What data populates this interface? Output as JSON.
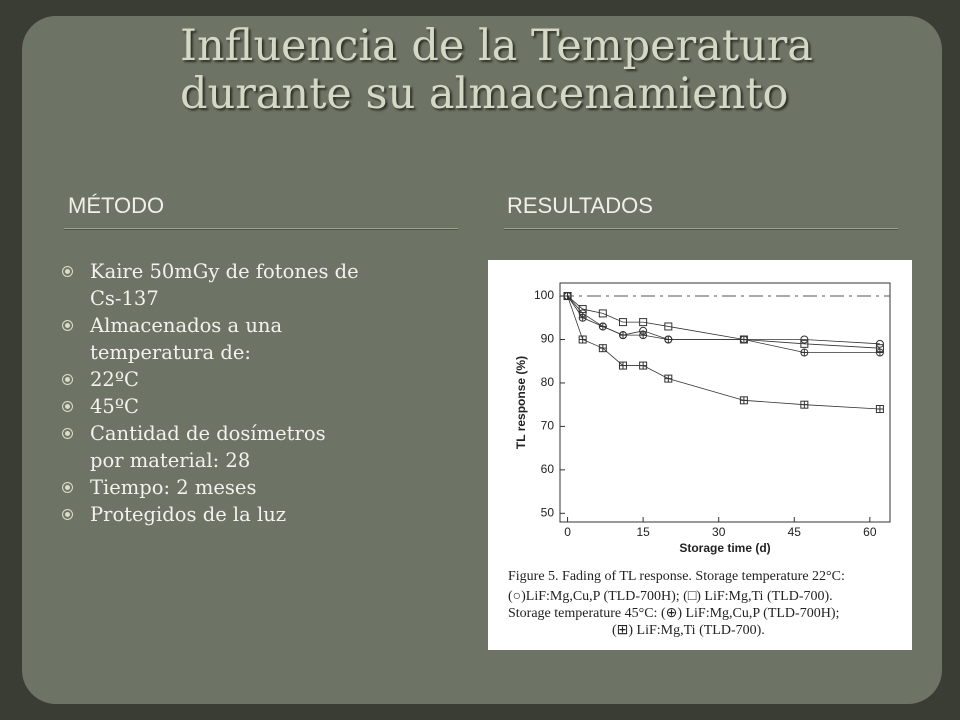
{
  "header": {
    "title": [
      "Influencia de la Temperatura",
      "durante su almacenamiento"
    ]
  },
  "columns": {
    "left": "MÉTODO",
    "right": "RESULTADOS"
  },
  "bullets": [
    [
      "Kaire 50mGy de fotones de",
      "Cs-137"
    ],
    [
      "Almacenados a una",
      "temperatura de:"
    ],
    [
      "22ºC"
    ],
    [
      "45ºC"
    ],
    [
      "Cantidad de dosímetros",
      "por material: 28"
    ],
    [
      "Tiempo: 2 meses"
    ],
    [
      "Protegidos de la luz"
    ]
  ],
  "figure": {
    "chart_data": {
      "type": "scatter",
      "x_label": "Storage time (d)",
      "y_label": "TL response (%)",
      "xlim": [
        -1.5,
        64
      ],
      "ylim": [
        48,
        103
      ],
      "xticks": [
        0,
        15,
        30,
        45,
        60
      ],
      "yticks": [
        50,
        60,
        70,
        80,
        90,
        100
      ],
      "series": [
        {
          "marker": "circle",
          "color": "#333333",
          "x": [
            0,
            3,
            7,
            11,
            15,
            20,
            35,
            47,
            62
          ],
          "values": [
            100,
            96,
            93,
            91,
            92,
            90,
            90,
            90,
            89
          ]
        },
        {
          "marker": "square",
          "color": "#333333",
          "x": [
            0,
            3,
            7,
            11,
            15,
            20,
            35,
            47,
            62
          ],
          "values": [
            100,
            97,
            96,
            94,
            94,
            93,
            90,
            89,
            88
          ]
        },
        {
          "marker": "circle-plus",
          "color": "#333333",
          "x": [
            0,
            3,
            7,
            11,
            15,
            20,
            35,
            47,
            62
          ],
          "values": [
            100,
            95,
            93,
            91,
            91,
            90,
            90,
            87,
            87
          ]
        },
        {
          "marker": "square-plus",
          "color": "#333333",
          "x": [
            0,
            3,
            7,
            11,
            15,
            20,
            35,
            47,
            62
          ],
          "values": [
            100,
            90,
            88,
            84,
            84,
            81,
            76,
            75,
            74
          ]
        }
      ]
    },
    "caption": [
      "Figure 5. Fading of TL response. Storage temperature 22°C:",
      "(○)LiF:Mg,Cu,P (TLD-700H); (□) LiF:Mg,Ti (TLD-700).",
      "Storage temperature 45°C: (⊕) LiF:Mg,Cu,P (TLD-700H);",
      "(⊞) LiF:Mg,Ti (TLD-700)."
    ]
  }
}
